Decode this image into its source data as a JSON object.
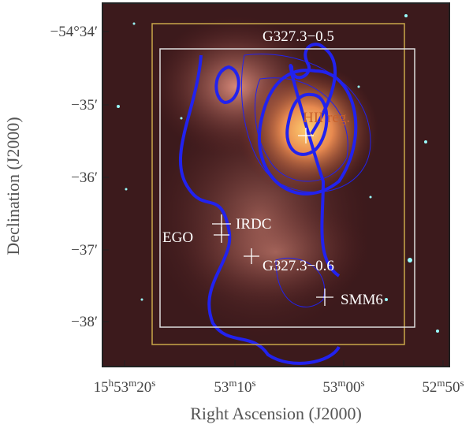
{
  "figure": {
    "x_label": "Right Ascension (J2000)",
    "y_label": "Declination (J2000)",
    "x_ticks": [
      [
        "15",
        "h",
        "53",
        "m",
        "20",
        "s"
      ],
      [
        "53",
        "m",
        "10",
        "s"
      ],
      [
        "53",
        "m",
        "00",
        "s"
      ],
      [
        "52",
        "m",
        "50",
        "s"
      ]
    ],
    "y_ticks": [
      "−54°34′",
      "−35′",
      "−36′",
      "−37′",
      "−38′"
    ],
    "annotations": [
      "G327.3−0.5",
      "HII reg.",
      "IRDC",
      "EGO",
      "G327.3−0.6",
      "SMM6"
    ]
  }
}
